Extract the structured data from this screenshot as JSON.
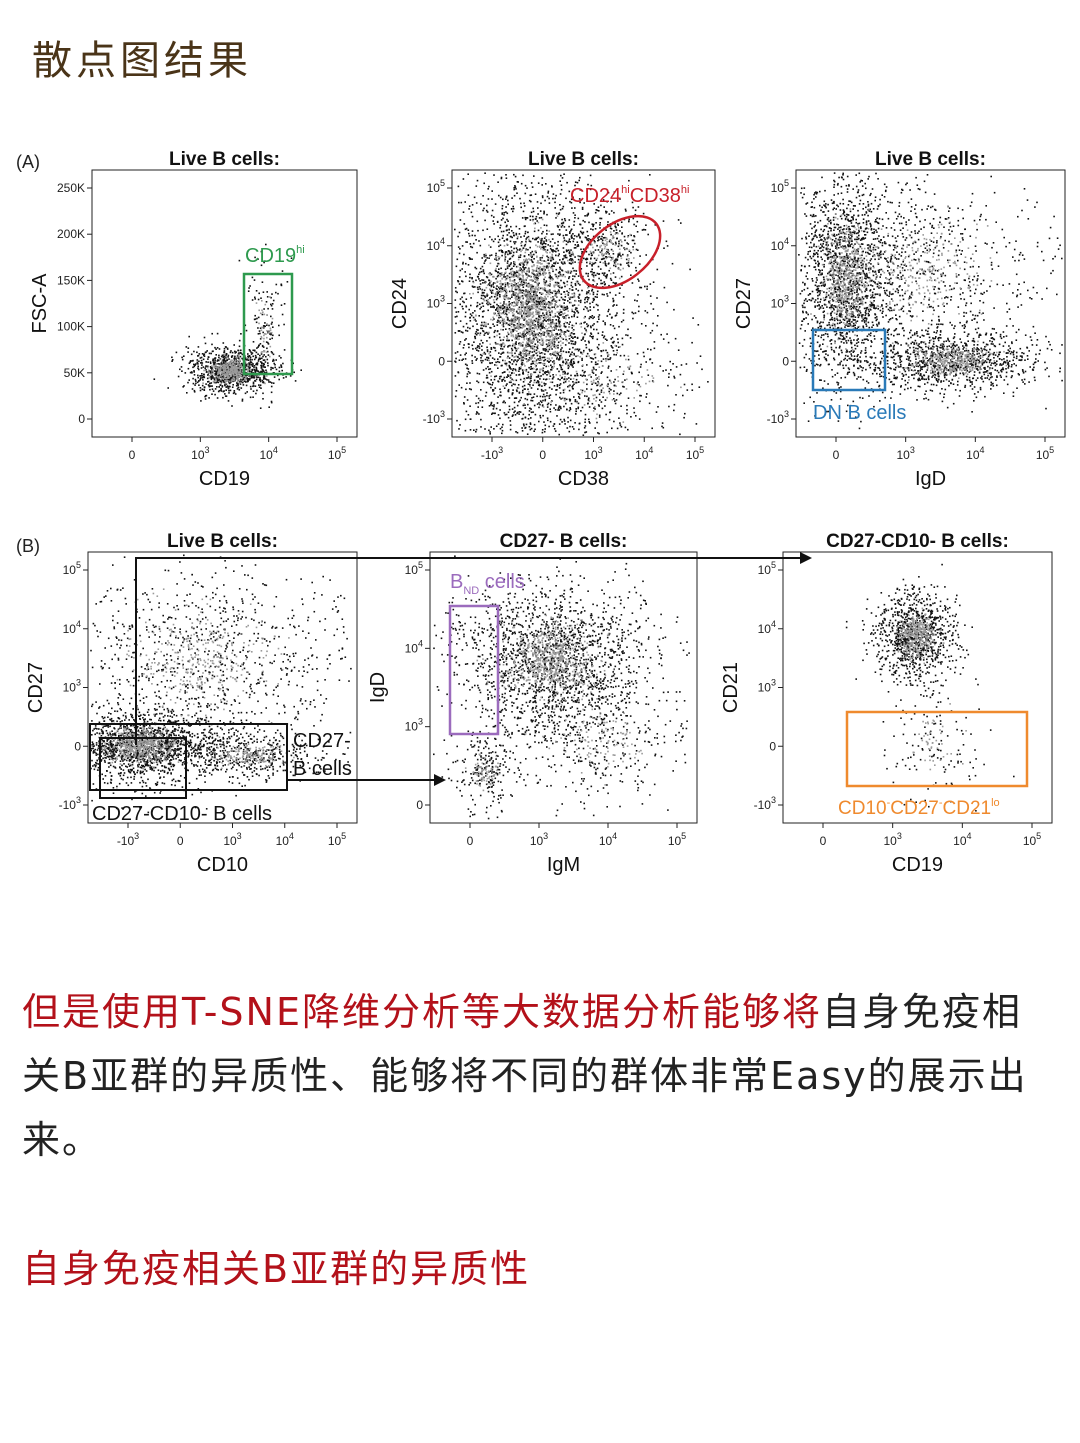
{
  "heading": "散点图结果",
  "figure": {
    "row_a_letter": "(A)",
    "row_b_letter": "(B)",
    "panels": [
      {
        "id": "a1",
        "title": "Live B cells:",
        "xlabel": "CD19",
        "ylabel": "FSC-A",
        "xticks": [
          "0",
          "10^3",
          "10^4",
          "10^5"
        ],
        "yticks": [
          "250K",
          "200K",
          "150K",
          "100K",
          "50K",
          "0"
        ],
        "gate": {
          "label": "CD19",
          "sup": "hi",
          "color": "#2e9a4e"
        }
      },
      {
        "id": "a2",
        "title": "Live B cells:",
        "xlabel": "CD38",
        "ylabel": "CD24",
        "xticks": [
          "-10^3",
          "0",
          "10^3",
          "10^4",
          "10^5"
        ],
        "yticks": [
          "10^5",
          "10^4",
          "10^3",
          "0",
          "-10^3"
        ],
        "gate": {
          "label_parts": [
            "CD24",
            "hi",
            "CD38",
            "hi"
          ],
          "color": "#c8202a"
        }
      },
      {
        "id": "a3",
        "title": "Live B cells:",
        "xlabel": "IgD",
        "ylabel": "CD27",
        "xticks": [
          "0",
          "10^3",
          "10^4",
          "10^5"
        ],
        "yticks": [
          "10^5",
          "10^4",
          "10^3",
          "0",
          "-10^3"
        ],
        "gate": {
          "label": "DN B cells",
          "color": "#2a7ab8"
        }
      },
      {
        "id": "b1",
        "title": "Live B cells:",
        "xlabel": "CD10",
        "ylabel": "CD27",
        "xticks": [
          "-10^3",
          "0",
          "10^3",
          "10^4",
          "10^5"
        ],
        "yticks": [
          "10^5",
          "10^4",
          "10^3",
          "0",
          "-10^3"
        ],
        "gate_cd27_neg": [
          "CD27-",
          "B cells"
        ],
        "gate_dn": "CD27-CD10- B cells"
      },
      {
        "id": "b2",
        "title": "CD27- B cells:",
        "xlabel": "IgM",
        "ylabel": "IgD",
        "xticks": [
          "0",
          "10^3",
          "10^4",
          "10^5"
        ],
        "yticks": [
          "10^5",
          "10^4",
          "10^3",
          "0"
        ],
        "gate": {
          "label_main": "B",
          "label_sub": "ND",
          "label_rest": " cells",
          "color": "#9b6bbd"
        }
      },
      {
        "id": "b3",
        "title": "CD27-CD10- B cells:",
        "xlabel": "CD19",
        "ylabel": "CD21",
        "xticks": [
          "0",
          "10^3",
          "10^4",
          "10^5"
        ],
        "yticks": [
          "10^5",
          "10^4",
          "10^3",
          "0",
          "-10^3"
        ],
        "gate": {
          "label_parts": [
            "CD10",
            "-",
            "CD27",
            "-",
            "CD21",
            "lo"
          ],
          "color": "#ef8a2e"
        }
      }
    ]
  },
  "paragraph": {
    "red_text": "但是使用T-SNE降维分析等大数据分析能够将",
    "normal_text": "自身免疫相关B亚群的异质性、能够将不同的群体非常Easy的展示出来。"
  },
  "subheading": "自身免疫相关B亚群的异质性"
}
